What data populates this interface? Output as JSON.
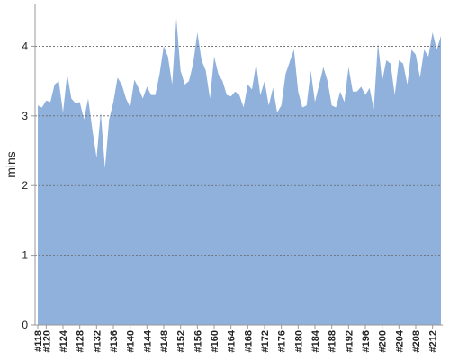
{
  "chart_data": {
    "type": "area",
    "y_label": "mins",
    "categories": [
      "#118",
      null,
      "#120",
      null,
      null,
      null,
      "#124",
      null,
      null,
      null,
      "#128",
      null,
      null,
      null,
      "#132",
      null,
      null,
      null,
      "#136",
      null,
      null,
      null,
      "#140",
      null,
      null,
      null,
      "#144",
      null,
      null,
      null,
      "#148",
      null,
      null,
      null,
      "#152",
      null,
      null,
      null,
      "#156",
      null,
      null,
      null,
      "#160",
      null,
      null,
      null,
      "#164",
      null,
      null,
      null,
      "#168",
      null,
      null,
      null,
      "#172",
      null,
      null,
      null,
      "#176",
      null,
      null,
      null,
      "#180",
      null,
      null,
      null,
      "#184",
      null,
      null,
      null,
      "#188",
      null,
      null,
      null,
      "#192",
      null,
      null,
      null,
      "#196",
      null,
      null,
      null,
      "#200",
      null,
      null,
      null,
      "#204",
      null,
      null,
      null,
      "#208",
      null,
      null,
      null,
      "#212",
      null,
      null
    ],
    "values": [
      3.15,
      3.12,
      3.22,
      3.2,
      3.45,
      3.5,
      3.05,
      3.6,
      3.25,
      3.18,
      3.2,
      2.95,
      3.25,
      2.8,
      2.4,
      3.05,
      2.25,
      2.95,
      3.2,
      3.55,
      3.45,
      3.25,
      3.12,
      3.52,
      3.4,
      3.25,
      3.42,
      3.3,
      3.3,
      3.6,
      4.0,
      3.85,
      3.45,
      4.4,
      3.65,
      3.45,
      3.5,
      3.75,
      4.2,
      3.8,
      3.65,
      3.25,
      3.85,
      3.6,
      3.5,
      3.3,
      3.28,
      3.35,
      3.3,
      3.12,
      3.45,
      3.38,
      3.75,
      3.3,
      3.5,
      3.15,
      3.4,
      3.05,
      3.15,
      3.6,
      3.78,
      3.95,
      3.35,
      3.12,
      3.15,
      3.65,
      3.2,
      3.45,
      3.7,
      3.5,
      3.15,
      3.12,
      3.35,
      3.2,
      3.7,
      3.35,
      3.35,
      3.42,
      3.3,
      3.4,
      3.1,
      4.05,
      3.5,
      3.8,
      3.75,
      3.3,
      3.8,
      3.75,
      3.45,
      3.95,
      3.88,
      3.55,
      3.95,
      3.85,
      4.2,
      3.95,
      4.15
    ],
    "color": "#8fb1db",
    "ylim": [
      0,
      4.6
    ],
    "yticks": [
      0,
      1,
      2,
      3,
      4
    ],
    "grid": true
  }
}
